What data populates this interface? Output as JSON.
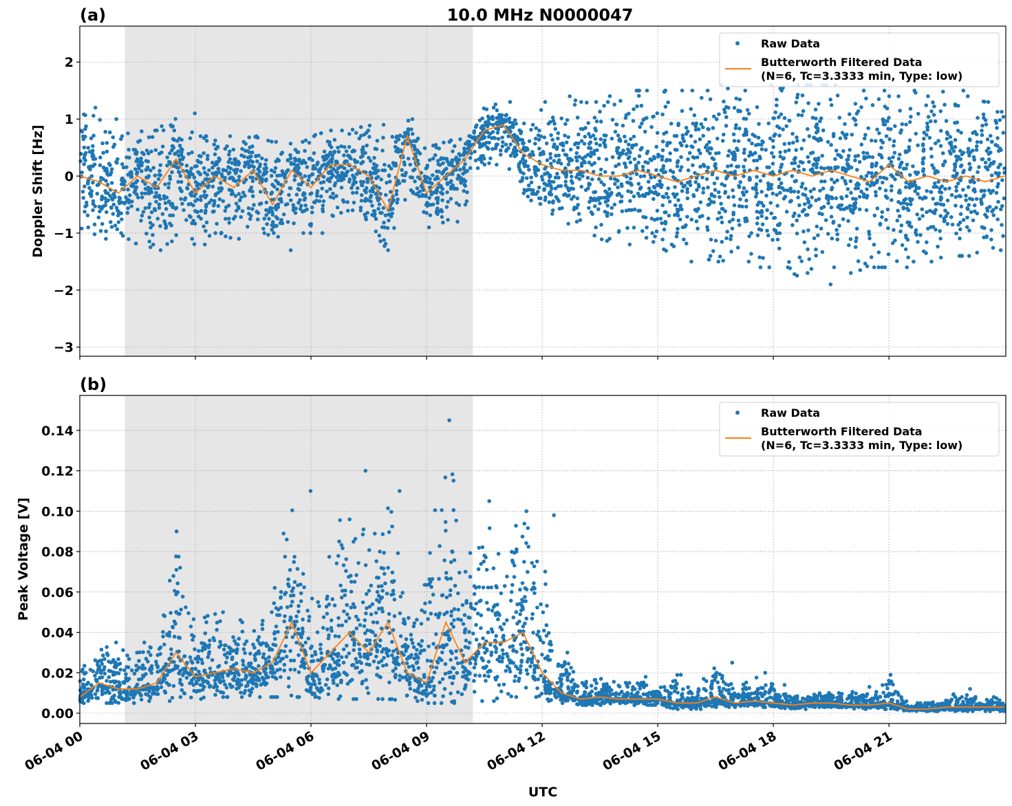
{
  "chart_data": [
    {
      "type": "scatter",
      "panel_label": "(a)",
      "title": "10.0 MHz N0000047",
      "xlabel": "",
      "ylabel": "Doppler Shift [Hz]",
      "ylim": [
        -3.16,
        2.63
      ],
      "xlim": [
        "06-04 00:00",
        "06-05 00:02"
      ],
      "yticks": [
        "2",
        "1",
        "0",
        "−1",
        "−2",
        "−3"
      ],
      "ytick_values": [
        2,
        1,
        0,
        -1,
        -2,
        -3
      ],
      "grid": true,
      "shaded_interval": [
        "01:10",
        "10:12"
      ],
      "legend": {
        "placement": "top-right",
        "entries": [
          "Raw Data",
          "Butterworth Filtered Data",
          "(N=6, Tc=3.3333 min, Type: low)"
        ]
      },
      "series": [
        {
          "name": "Raw Data",
          "color": "#1f77b4",
          "kind": "points"
        },
        {
          "name": "Butterworth Filtered Data",
          "color": "#ff7f0e",
          "kind": "line"
        }
      ],
      "bins": [
        [
          "00:00",
          0.0,
          -0.9,
          1.2
        ],
        [
          "00:30",
          -0.1,
          -1.1,
          1.0
        ],
        [
          "01:00",
          -0.3,
          -1.0,
          0.7
        ],
        [
          "01:30",
          0.0,
          -1.2,
          0.8
        ],
        [
          "02:00",
          -0.2,
          -1.3,
          0.8
        ],
        [
          "02:30",
          0.3,
          -1.1,
          1.1
        ],
        [
          "03:00",
          -0.3,
          -1.2,
          0.7
        ],
        [
          "03:30",
          0.0,
          -1.0,
          0.7
        ],
        [
          "04:00",
          -0.2,
          -1.1,
          0.6
        ],
        [
          "04:30",
          0.1,
          -1.0,
          0.7
        ],
        [
          "05:00",
          -0.5,
          -1.3,
          0.6
        ],
        [
          "05:30",
          0.1,
          -1.0,
          0.6
        ],
        [
          "06:00",
          -0.2,
          -1.0,
          0.7
        ],
        [
          "06:30",
          0.2,
          -0.7,
          0.8
        ],
        [
          "07:00",
          0.2,
          -0.6,
          0.8
        ],
        [
          "07:30",
          0.0,
          -0.9,
          0.9
        ],
        [
          "08:00",
          -0.6,
          -1.3,
          0.6
        ],
        [
          "08:30",
          0.7,
          -0.3,
          1.0
        ],
        [
          "09:00",
          -0.3,
          -0.9,
          0.5
        ],
        [
          "09:30",
          0.0,
          -0.8,
          0.6
        ],
        [
          "10:00",
          0.3,
          -0.5,
          0.7
        ],
        [
          "10:30",
          0.8,
          0.2,
          1.2
        ],
        [
          "11:00",
          0.9,
          0.3,
          1.3
        ],
        [
          "11:30",
          0.4,
          -0.3,
          0.9
        ],
        [
          "12:00",
          0.2,
          -0.6,
          1.3
        ],
        [
          "12:30",
          0.1,
          -0.8,
          1.4
        ],
        [
          "13:00",
          0.1,
          -0.9,
          1.3
        ],
        [
          "13:30",
          0.0,
          -1.1,
          1.3
        ],
        [
          "14:00",
          0.0,
          -1.2,
          1.5
        ],
        [
          "14:30",
          0.1,
          -1.0,
          1.5
        ],
        [
          "15:00",
          0.0,
          -1.2,
          1.5
        ],
        [
          "15:30",
          -0.1,
          -1.5,
          1.5
        ],
        [
          "16:00",
          0.0,
          -1.4,
          1.5
        ],
        [
          "16:30",
          0.1,
          -1.5,
          1.6
        ],
        [
          "17:00",
          0.0,
          -1.5,
          1.5
        ],
        [
          "17:30",
          0.1,
          -1.6,
          1.6
        ],
        [
          "18:00",
          0.0,
          -1.6,
          1.5
        ],
        [
          "18:30",
          0.1,
          -1.7,
          1.6
        ],
        [
          "19:00",
          0.0,
          -1.9,
          1.6
        ],
        [
          "19:30",
          0.1,
          -1.6,
          1.6
        ],
        [
          "20:00",
          0.0,
          -1.7,
          1.5
        ],
        [
          "20:30",
          -0.1,
          -1.6,
          1.5
        ],
        [
          "21:00",
          0.2,
          -1.6,
          1.4
        ],
        [
          "21:30",
          -0.1,
          -1.5,
          1.5
        ],
        [
          "22:00",
          0.0,
          -1.5,
          1.4
        ],
        [
          "22:30",
          -0.1,
          -1.4,
          1.5
        ],
        [
          "23:00",
          0.0,
          -1.4,
          1.4
        ],
        [
          "23:30",
          -0.1,
          -1.3,
          1.3
        ],
        [
          "24:00",
          0.0,
          -1.2,
          1.3
        ]
      ]
    },
    {
      "type": "scatter",
      "panel_label": "(b)",
      "title": "",
      "xlabel": "UTC",
      "ylabel": "Peak Voltage [V]",
      "ylim": [
        -0.0051,
        0.1573
      ],
      "xlim": [
        "06-04 00:00",
        "06-05 00:02"
      ],
      "yticks": [
        "0.14",
        "0.12",
        "0.10",
        "0.08",
        "0.06",
        "0.04",
        "0.02",
        "0.00"
      ],
      "ytick_values": [
        0.14,
        0.12,
        0.1,
        0.08,
        0.06,
        0.04,
        0.02,
        0.0
      ],
      "xticks": [
        "06-04 00",
        "06-04 03",
        "06-04 06",
        "06-04 09",
        "06-04 12",
        "06-04 15",
        "06-04 18",
        "06-04 21"
      ],
      "xtick_hours": [
        0,
        3,
        6,
        9,
        12,
        15,
        18,
        21
      ],
      "grid": true,
      "shaded_interval": [
        "01:10",
        "10:12"
      ],
      "legend": {
        "placement": "top-right",
        "entries": [
          "Raw Data",
          "Butterworth Filtered Data",
          "(N=6, Tc=3.3333 min, Type: low)"
        ]
      },
      "series": [
        {
          "name": "Raw Data",
          "color": "#1f77b4",
          "kind": "points"
        },
        {
          "name": "Butterworth Filtered Data",
          "color": "#ff7f0e",
          "kind": "line"
        }
      ],
      "bins": [
        [
          "00:00",
          0.008,
          0.005,
          0.02
        ],
        [
          "00:30",
          0.015,
          0.005,
          0.035
        ],
        [
          "01:00",
          0.012,
          0.005,
          0.03
        ],
        [
          "01:30",
          0.012,
          0.006,
          0.035
        ],
        [
          "02:00",
          0.015,
          0.006,
          0.04
        ],
        [
          "02:30",
          0.03,
          0.008,
          0.09
        ],
        [
          "03:00",
          0.018,
          0.007,
          0.045
        ],
        [
          "03:30",
          0.02,
          0.008,
          0.05
        ],
        [
          "04:00",
          0.022,
          0.008,
          0.045
        ],
        [
          "04:30",
          0.02,
          0.008,
          0.05
        ],
        [
          "05:00",
          0.025,
          0.008,
          0.06
        ],
        [
          "05:30",
          0.045,
          0.008,
          0.11
        ],
        [
          "06:00",
          0.02,
          0.008,
          0.055
        ],
        [
          "06:30",
          0.03,
          0.007,
          0.085
        ],
        [
          "07:00",
          0.04,
          0.007,
          0.12
        ],
        [
          "07:30",
          0.03,
          0.007,
          0.08
        ],
        [
          "08:00",
          0.045,
          0.007,
          0.11
        ],
        [
          "08:30",
          0.02,
          0.006,
          0.05
        ],
        [
          "09:00",
          0.015,
          0.005,
          0.065
        ],
        [
          "09:30",
          0.045,
          0.005,
          0.145
        ],
        [
          "10:00",
          0.025,
          0.006,
          0.07
        ],
        [
          "10:30",
          0.035,
          0.006,
          0.105
        ],
        [
          "11:00",
          0.035,
          0.008,
          0.08
        ],
        [
          "11:30",
          0.04,
          0.008,
          0.1
        ],
        [
          "12:00",
          0.02,
          0.006,
          0.098
        ],
        [
          "12:30",
          0.01,
          0.005,
          0.03
        ],
        [
          "13:00",
          0.007,
          0.004,
          0.015
        ],
        [
          "13:30",
          0.008,
          0.004,
          0.017
        ],
        [
          "14:00",
          0.007,
          0.004,
          0.015
        ],
        [
          "14:30",
          0.007,
          0.004,
          0.018
        ],
        [
          "15:00",
          0.007,
          0.004,
          0.013
        ],
        [
          "15:30",
          0.005,
          0.002,
          0.019
        ],
        [
          "16:00",
          0.005,
          0.002,
          0.012
        ],
        [
          "16:30",
          0.008,
          0.003,
          0.025
        ],
        [
          "17:00",
          0.005,
          0.003,
          0.012
        ],
        [
          "17:30",
          0.006,
          0.003,
          0.02
        ],
        [
          "18:00",
          0.005,
          0.003,
          0.014
        ],
        [
          "18:30",
          0.004,
          0.002,
          0.008
        ],
        [
          "19:00",
          0.005,
          0.003,
          0.01
        ],
        [
          "19:30",
          0.005,
          0.003,
          0.01
        ],
        [
          "20:00",
          0.004,
          0.002,
          0.013
        ],
        [
          "20:30",
          0.004,
          0.002,
          0.009
        ],
        [
          "21:00",
          0.005,
          0.002,
          0.019
        ],
        [
          "21:30",
          0.002,
          0.001,
          0.005
        ],
        [
          "22:00",
          0.002,
          0.001,
          0.005
        ],
        [
          "22:30",
          0.003,
          0.001,
          0.008
        ],
        [
          "23:00",
          0.003,
          0.001,
          0.012
        ],
        [
          "23:30",
          0.003,
          0.001,
          0.008
        ],
        [
          "24:00",
          0.003,
          0.001,
          0.007
        ]
      ]
    }
  ]
}
